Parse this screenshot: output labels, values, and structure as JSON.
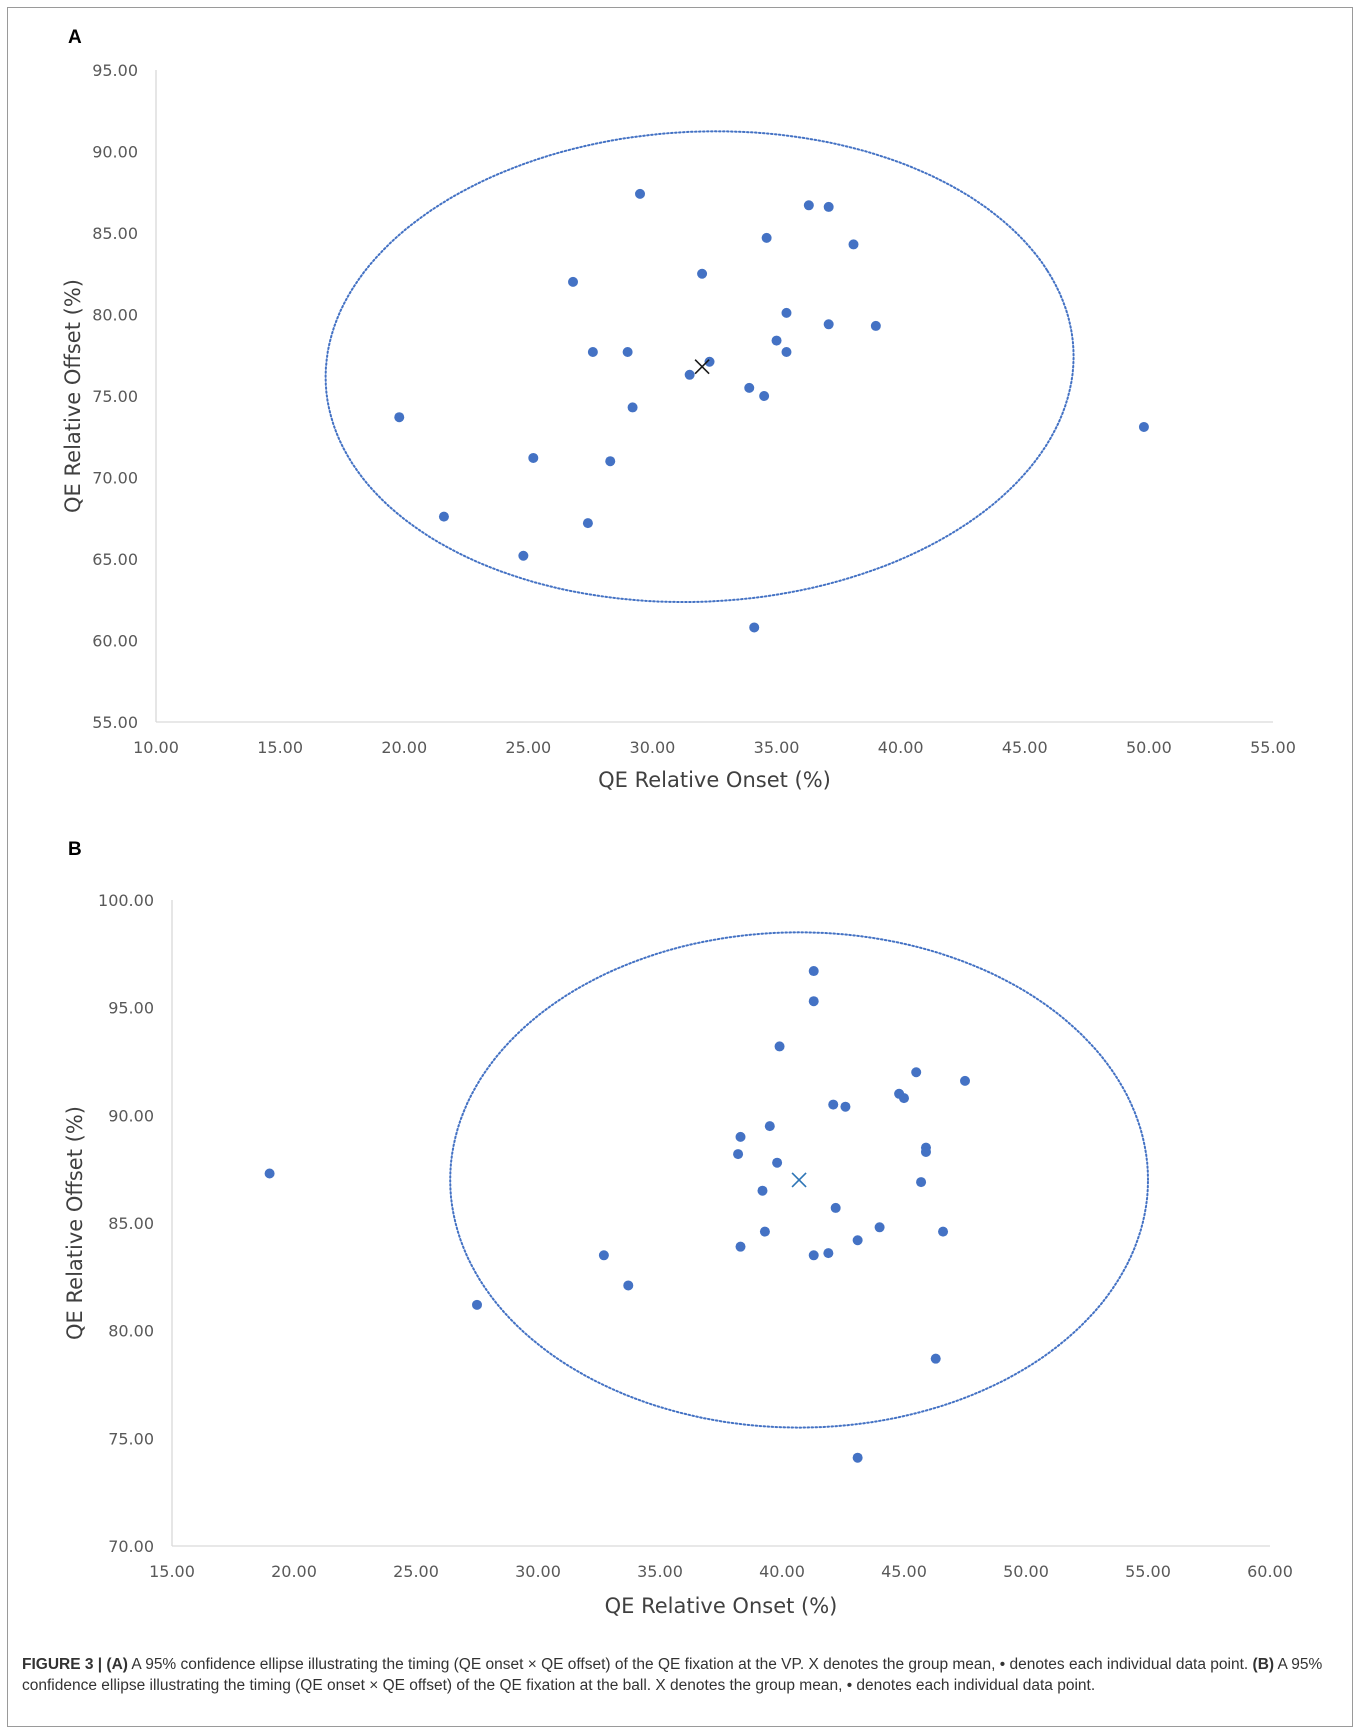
{
  "caption": {
    "label": "FIGURE 3 | (A)",
    "text_a": "A 95% confidence ellipse illustrating the timing (QE onset × QE offset) of the QE fixation at the VP. X denotes the group mean, • denotes each individual data point.",
    "label_b": "(B)",
    "text_b": "A 95% confidence ellipse illustrating the timing (QE onset × QE offset) of the QE fixation at the ball. X denotes the group mean, • denotes each individual data point."
  },
  "colors": {
    "points": "#4472c4",
    "ellipse": "#4472c4",
    "mean_a": "#1a1a1a",
    "mean_b": "#2e75b6",
    "axis": "#d9d9d9"
  },
  "chart_data": [
    {
      "panel": "A",
      "type": "scatter",
      "xlabel": "QE Relative Onset (%)",
      "ylabel": "QE Relative Offset (%)",
      "xlim": [
        10,
        55
      ],
      "ylim": [
        55,
        95
      ],
      "xticks": [
        "10.00",
        "15.00",
        "20.00",
        "25.00",
        "30.00",
        "35.00",
        "40.00",
        "45.00",
        "50.00",
        "55.00"
      ],
      "yticks": [
        "55.00",
        "60.00",
        "65.00",
        "70.00",
        "75.00",
        "80.00",
        "85.00",
        "90.00",
        "95.00"
      ],
      "points": [
        [
          19.8,
          73.7
        ],
        [
          21.6,
          67.6
        ],
        [
          24.8,
          65.2
        ],
        [
          25.2,
          71.2
        ],
        [
          26.8,
          82.0
        ],
        [
          27.4,
          67.2
        ],
        [
          27.6,
          77.7
        ],
        [
          28.3,
          71.0
        ],
        [
          29.0,
          77.7
        ],
        [
          29.2,
          74.3
        ],
        [
          29.5,
          87.4
        ],
        [
          31.5,
          76.3
        ],
        [
          32.0,
          82.5
        ],
        [
          32.3,
          77.1
        ],
        [
          33.9,
          75.5
        ],
        [
          34.1,
          60.8
        ],
        [
          34.5,
          75.0
        ],
        [
          34.6,
          84.7
        ],
        [
          35.0,
          78.4
        ],
        [
          35.4,
          80.1
        ],
        [
          35.4,
          77.7
        ],
        [
          36.3,
          86.7
        ],
        [
          37.1,
          86.6
        ],
        [
          37.1,
          79.4
        ],
        [
          38.1,
          84.3
        ],
        [
          39.0,
          79.3
        ],
        [
          49.8,
          73.1
        ]
      ],
      "mean": [
        32.0,
        76.8
      ],
      "ellipse": {
        "center": [
          31.9,
          76.8
        ],
        "semi_axes": [
          15.2,
          14.3
        ],
        "angle_deg": 23
      }
    },
    {
      "panel": "B",
      "type": "scatter",
      "xlabel": "QE Relative Onset (%)",
      "ylabel": "QE Relative Offset (%)",
      "xlim": [
        15,
        60
      ],
      "ylim": [
        70,
        100
      ],
      "xticks": [
        "15.00",
        "20.00",
        "25.00",
        "30.00",
        "35.00",
        "40.00",
        "45.00",
        "50.00",
        "55.00",
        "60.00"
      ],
      "yticks": [
        "70.00",
        "75.00",
        "80.00",
        "85.00",
        "90.00",
        "95.00",
        "100.00"
      ],
      "points": [
        [
          19.0,
          87.3
        ],
        [
          27.5,
          81.2
        ],
        [
          32.7,
          83.5
        ],
        [
          33.7,
          82.1
        ],
        [
          38.2,
          88.2
        ],
        [
          38.3,
          89.0
        ],
        [
          38.3,
          83.9
        ],
        [
          39.2,
          86.5
        ],
        [
          39.3,
          84.6
        ],
        [
          39.5,
          89.5
        ],
        [
          39.8,
          87.8
        ],
        [
          39.9,
          93.2
        ],
        [
          41.3,
          96.7
        ],
        [
          41.3,
          95.3
        ],
        [
          41.3,
          83.5
        ],
        [
          41.9,
          83.6
        ],
        [
          42.1,
          90.5
        ],
        [
          42.2,
          85.7
        ],
        [
          42.6,
          90.4
        ],
        [
          43.1,
          84.2
        ],
        [
          44.0,
          84.8
        ],
        [
          44.8,
          91.0
        ],
        [
          45.0,
          90.8
        ],
        [
          45.5,
          92.0
        ],
        [
          45.7,
          86.9
        ],
        [
          45.9,
          88.5
        ],
        [
          45.9,
          88.3
        ],
        [
          46.3,
          78.7
        ],
        [
          46.6,
          84.6
        ],
        [
          47.5,
          91.6
        ],
        [
          43.1,
          74.1
        ]
      ],
      "mean": [
        40.7,
        87.0
      ],
      "ellipse": {
        "center": [
          40.7,
          87.0
        ],
        "semi_axes": [
          14.3,
          11.5
        ],
        "angle_deg": 0
      }
    }
  ]
}
